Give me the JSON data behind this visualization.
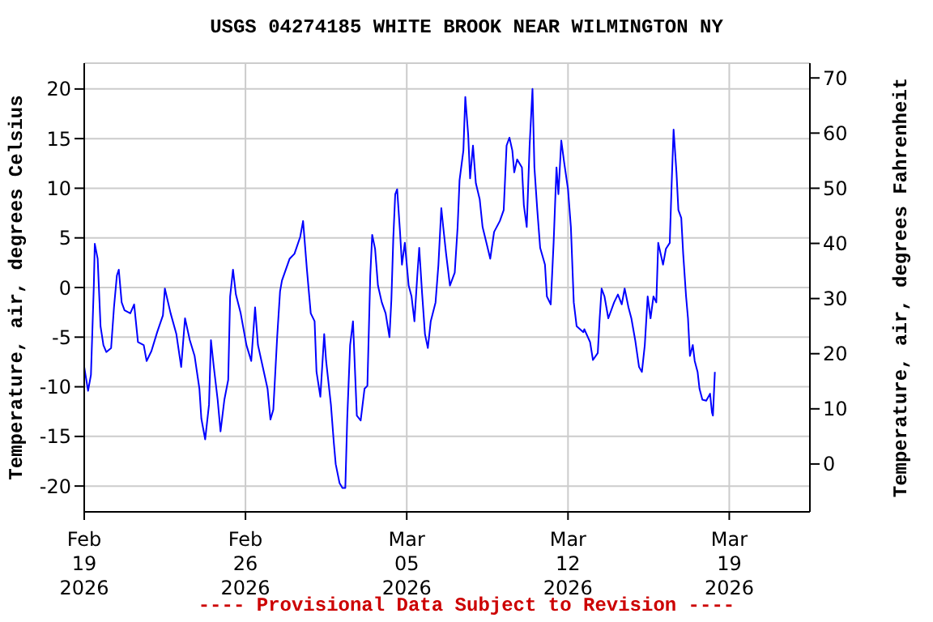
{
  "chart_data": {
    "type": "line",
    "title": "USGS 04274185 WHITE BROOK NEAR WILMINGTON NY",
    "ylabel": "Temperature, air, degrees Celsius",
    "y2label": "Temperature, air, degrees Fahrenheit",
    "annotations": [
      "---- Provisional Data Subject to Revision ----"
    ],
    "x": [
      "2026-02-19T00:00",
      "2026-02-19T04:00",
      "2026-02-19T07:00",
      "2026-02-19T10:00",
      "2026-02-19T11:00",
      "2026-02-19T14:00",
      "2026-02-19T17:00",
      "2026-02-19T20:00",
      "2026-02-19T23:00",
      "2026-02-20T04:00",
      "2026-02-20T07:00",
      "2026-02-20T10:00",
      "2026-02-20T12:00",
      "2026-02-20T15:00",
      "2026-02-20T18:00",
      "2026-02-21T00:00",
      "2026-02-21T04:00",
      "2026-02-21T08:00",
      "2026-02-21T14:00",
      "2026-02-21T17:00",
      "2026-02-21T22:00",
      "2026-02-22T04:00",
      "2026-02-22T10:00",
      "2026-02-22T12:00",
      "2026-02-22T18:00",
      "2026-02-23T00:00",
      "2026-02-23T05:00",
      "2026-02-23T09:00",
      "2026-02-23T14:00",
      "2026-02-23T19:00",
      "2026-02-24T00:00",
      "2026-02-24T02:00",
      "2026-02-24T06:00",
      "2026-02-24T10:00",
      "2026-02-24T12:00",
      "2026-02-24T15:00",
      "2026-02-24T19:00",
      "2026-02-24T22:00",
      "2026-02-25T02:00",
      "2026-02-25T06:00",
      "2026-02-25T08:00",
      "2026-02-25T11:00",
      "2026-02-25T14:00",
      "2026-02-25T19:00",
      "2026-02-26T01:00",
      "2026-02-26T06:00",
      "2026-02-26T10:00",
      "2026-02-26T13:00",
      "2026-02-26T18:00",
      "2026-02-26T23:00",
      "2026-02-27T02:00",
      "2026-02-27T05:00",
      "2026-02-27T09:00",
      "2026-02-27T12:00",
      "2026-02-27T14:00",
      "2026-02-27T22:00",
      "2026-02-28T03:00",
      "2026-02-28T09:00",
      "2026-02-28T12:00",
      "2026-02-28T16:00",
      "2026-02-28T20:00",
      "2026-03-01T00:00",
      "2026-03-01T02:00",
      "2026-03-01T06:00",
      "2026-03-01T10:00",
      "2026-03-01T12:00",
      "2026-03-01T17:00",
      "2026-03-01T20:00",
      "2026-03-01T22:00",
      "2026-03-02T02:00",
      "2026-03-02T05:00",
      "2026-03-02T08:00",
      "2026-03-02T10:00",
      "2026-03-02T13:00",
      "2026-03-02T16:00",
      "2026-03-02T17:00",
      "2026-03-02T20:00",
      "2026-03-03T00:00",
      "2026-03-03T04:00",
      "2026-03-03T07:00",
      "2026-03-03T10:00",
      "2026-03-03T12:00",
      "2026-03-03T15:00",
      "2026-03-03T18:00",
      "2026-03-03T22:00",
      "2026-03-04T02:00",
      "2026-03-04T06:00",
      "2026-03-04T08:00",
      "2026-03-04T10:00",
      "2026-03-04T12:00",
      "2026-03-04T14:00",
      "2026-03-04T17:00",
      "2026-03-04T19:00",
      "2026-03-04T22:00",
      "2026-03-05T02:00",
      "2026-03-05T05:00",
      "2026-03-05T08:00",
      "2026-03-05T11:00",
      "2026-03-05T13:00",
      "2026-03-05T16:00",
      "2026-03-05T19:00",
      "2026-03-05T22:00",
      "2026-03-06T01:00",
      "2026-03-06T06:00",
      "2026-03-06T09:00",
      "2026-03-06T12:00",
      "2026-03-06T14:00",
      "2026-03-06T17:00",
      "2026-03-06T21:00",
      "2026-03-07T02:00",
      "2026-03-07T05:00",
      "2026-03-07T07:00",
      "2026-03-07T11:00",
      "2026-03-07T13:00",
      "2026-03-07T16:00",
      "2026-03-07T18:00",
      "2026-03-07T21:00",
      "2026-03-08T00:00",
      "2026-03-08T04:00",
      "2026-03-08T07:00",
      "2026-03-08T11:00",
      "2026-03-08T15:00",
      "2026-03-08T19:00",
      "2026-03-09T01:00",
      "2026-03-09T05:00",
      "2026-03-09T08:00",
      "2026-03-09T11:00",
      "2026-03-09T14:00",
      "2026-03-09T16:00",
      "2026-03-09T19:00",
      "2026-03-10T00:00",
      "2026-03-10T02:00",
      "2026-03-10T05:00",
      "2026-03-10T08:00",
      "2026-03-10T11:00",
      "2026-03-10T13:00",
      "2026-03-10T16:00",
      "2026-03-10T19:00",
      "2026-03-11T00:00",
      "2026-03-11T02:00",
      "2026-03-11T06:00",
      "2026-03-11T09:00",
      "2026-03-11T12:00",
      "2026-03-11T14:00",
      "2026-03-11T17:00",
      "2026-03-11T20:00",
      "2026-03-12T00:00",
      "2026-03-12T03:00",
      "2026-03-12T06:00",
      "2026-03-12T09:00",
      "2026-03-12T16:00",
      "2026-03-12T17:00",
      "2026-03-12T23:00",
      "2026-03-13T02:00",
      "2026-03-13T07:00",
      "2026-03-13T09:00",
      "2026-03-13T11:00",
      "2026-03-13T14:00",
      "2026-03-13T18:00",
      "2026-03-14T00:00",
      "2026-03-14T04:00",
      "2026-03-14T08:00",
      "2026-03-14T11:00",
      "2026-03-14T15:00",
      "2026-03-14T18:00",
      "2026-03-14T22:00",
      "2026-03-15T02:00",
      "2026-03-15T05:00",
      "2026-03-15T08:00",
      "2026-03-15T11:00",
      "2026-03-15T14:00",
      "2026-03-15T17:00",
      "2026-03-15T20:00",
      "2026-03-15T22:00",
      "2026-03-16T03:00",
      "2026-03-16T06:00",
      "2026-03-16T10:00",
      "2026-03-16T12:00",
      "2026-03-16T14:00",
      "2026-03-16T17:00",
      "2026-03-16T19:00",
      "2026-03-16T22:00",
      "2026-03-17T00:00",
      "2026-03-17T03:00",
      "2026-03-17T05:00",
      "2026-03-17T07:00",
      "2026-03-17T10:00",
      "2026-03-17T12:00",
      "2026-03-17T15:00",
      "2026-03-17T17:00",
      "2026-03-17T20:00",
      "2026-03-18T00:00",
      "2026-03-18T04:00",
      "2026-03-18T06:00",
      "2026-03-18T07:00",
      "2026-03-18T08:00",
      "2026-03-18T09:00"
    ],
    "series": [
      {
        "color": "#0000ff",
        "values": [
          -8,
          -10.4,
          -8.8,
          0.2,
          4.4,
          2.9,
          -3.9,
          -5.8,
          -6.5,
          -6.1,
          -2,
          1.2,
          1.8,
          -1.5,
          -2.3,
          -2.6,
          -1.7,
          -5.5,
          -5.8,
          -7.4,
          -6.4,
          -4.5,
          -2.8,
          -0.1,
          -2.6,
          -4.7,
          -8,
          -3.1,
          -5.3,
          -6.9,
          -10.2,
          -13.2,
          -15.3,
          -11.8,
          -5.3,
          -8,
          -11.3,
          -14.5,
          -11.3,
          -9.3,
          -0.9,
          1.8,
          -0.7,
          -2.6,
          -5.8,
          -7.4,
          -2,
          -5.8,
          -8,
          -10.2,
          -13.3,
          -12.3,
          -5,
          -0.4,
          0.7,
          2.9,
          3.4,
          5.1,
          6.7,
          1.8,
          -2.6,
          -3.4,
          -8.5,
          -11,
          -4.7,
          -7.4,
          -11.8,
          -15.6,
          -17.8,
          -19.7,
          -20.2,
          -20.2,
          -13.2,
          -5.8,
          -3.4,
          -5.8,
          -12.9,
          -13.4,
          -10.2,
          -9.9,
          1.2,
          5.3,
          3.9,
          0.2,
          -1.5,
          -2.6,
          -5,
          -1.2,
          5,
          9.4,
          9.9,
          5.6,
          2.3,
          4.5,
          0.2,
          -0.9,
          -3.4,
          1.2,
          4,
          -0.6,
          -4.7,
          -6.1,
          -3.4,
          -1.5,
          2.3,
          8,
          6.1,
          3.4,
          0.2,
          1.5,
          6.1,
          10.8,
          13.8,
          19.2,
          15.4,
          11,
          14.3,
          10.5,
          8.9,
          6.1,
          4.5,
          2.9,
          5.6,
          6.7,
          7.8,
          14.3,
          15.1,
          13.8,
          11.6,
          12.9,
          12.1,
          8.3,
          6.1,
          14.3,
          20,
          12.1,
          7.8,
          4,
          2.3,
          -0.9,
          -1.7,
          4.5,
          12.1,
          9.4,
          14.8,
          12.6,
          9.9,
          6.1,
          -1.5,
          -3.9,
          -4.5,
          -4.2,
          -5.5,
          -7.3,
          -6.6,
          -3.1,
          -0.1,
          -0.9,
          -3.1,
          -1.5,
          -0.7,
          -1.7,
          -0.1,
          -2,
          -3.1,
          -5.3,
          -8,
          -8.5,
          -5.8,
          -0.9,
          -3.1,
          -0.9,
          -1.5,
          4.5,
          2.3,
          3.9,
          4.5,
          10.5,
          15.9,
          11.6,
          7.8,
          7,
          3.4,
          -0.9,
          -3.1,
          -6.9,
          -5.8,
          -7.4,
          -8.5,
          -10.2,
          -11.3,
          -11.4,
          -10.7,
          -12.6,
          -12.9,
          -10.7,
          -8.5
        ]
      }
    ],
    "xlim": [
      "2026-02-19",
      "2026-03-22T12:00"
    ],
    "xticks": [
      {
        "value": "2026-02-19",
        "label": "Feb\n19\n2026"
      },
      {
        "value": "2026-02-26",
        "label": "Feb\n26\n2026"
      },
      {
        "value": "2026-03-05",
        "label": "Mar\n05\n2026"
      },
      {
        "value": "2026-03-12",
        "label": "Mar\n12\n2026"
      },
      {
        "value": "2026-03-19",
        "label": "Mar\n19\n2026"
      }
    ],
    "ylim": [
      -22.6,
      22.6
    ],
    "yticks": [
      -20,
      -15,
      -10,
      -5,
      0,
      5,
      10,
      15,
      20
    ],
    "y2lim": [
      -8.68,
      72.68
    ],
    "y2ticks": [
      0,
      10,
      20,
      30,
      40,
      50,
      60,
      70
    ],
    "grid": true,
    "marker": "none",
    "line_style": "solid"
  }
}
